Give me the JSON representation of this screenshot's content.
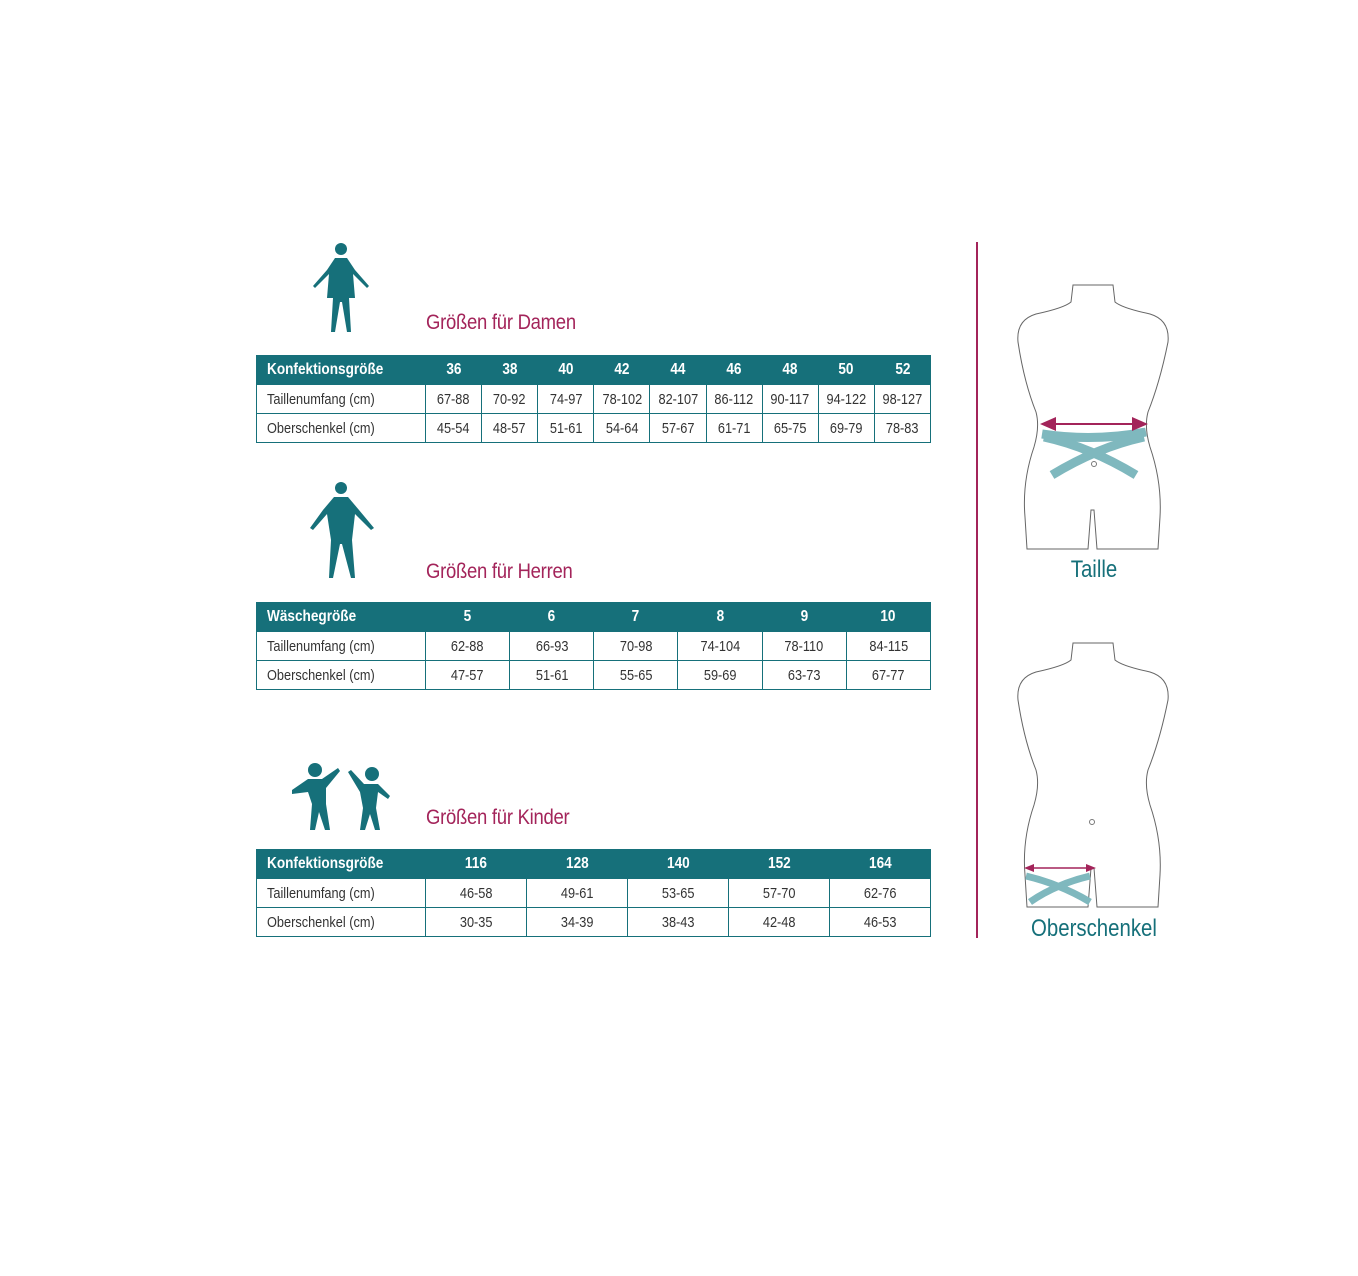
{
  "colors": {
    "header": "#16707a",
    "title": "#a3245a",
    "tape": "#7fb8be",
    "arrow": "#a3245a"
  },
  "damen": {
    "icon": "woman-icon",
    "title": "Größen für Damen",
    "header": [
      "Konfektionsgröße",
      "36",
      "38",
      "40",
      "42",
      "44",
      "46",
      "48",
      "50",
      "52"
    ],
    "rows": [
      [
        "Taillenumfang (cm)",
        "67-88",
        "70-92",
        "74-97",
        "78-102",
        "82-107",
        "86-112",
        "90-117",
        "94-122",
        "98-127"
      ],
      [
        "Oberschenkel (cm)",
        "45-54",
        "48-57",
        "51-61",
        "54-64",
        "57-67",
        "61-71",
        "65-75",
        "69-79",
        "78-83"
      ]
    ]
  },
  "herren": {
    "icon": "man-icon",
    "title": "Größen für Herren",
    "header": [
      "Wäschegröße",
      "5",
      "6",
      "7",
      "8",
      "9",
      "10"
    ],
    "rows": [
      [
        "Taillenumfang (cm)",
        "62-88",
        "66-93",
        "70-98",
        "74-104",
        "78-110",
        "84-115"
      ],
      [
        "Oberschenkel (cm)",
        "47-57",
        "51-61",
        "55-65",
        "59-69",
        "63-73",
        "67-77"
      ]
    ]
  },
  "kinder": {
    "icon": "children-icon",
    "title": "Größen für Kinder",
    "header": [
      "Konfektionsgröße",
      "116",
      "128",
      "140",
      "152",
      "164"
    ],
    "rows": [
      [
        "Taillenumfang (cm)",
        "46-58",
        "49-61",
        "53-65",
        "57-70",
        "62-76"
      ],
      [
        "Oberschenkel (cm)",
        "30-35",
        "34-39",
        "38-43",
        "42-48",
        "46-53"
      ]
    ]
  },
  "figures": {
    "waist_caption": "Taille",
    "thigh_caption": "Oberschenkel"
  }
}
